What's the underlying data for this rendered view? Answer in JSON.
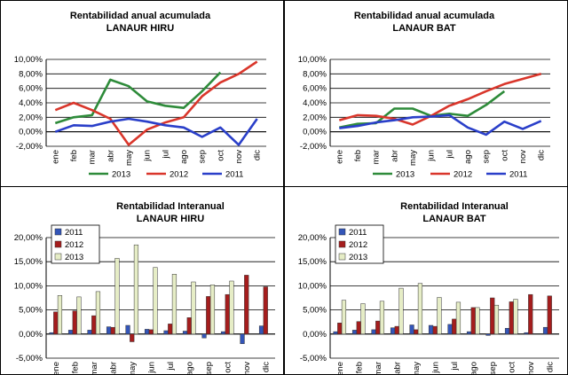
{
  "chart_data": [
    {
      "type": "line",
      "title": "Rentabilidad anual acumulada",
      "subtitle": "LANAUR HIRU",
      "categories": [
        "ene",
        "feb",
        "mar",
        "abr",
        "may",
        "jun",
        "jul",
        "ago",
        "sep",
        "oct",
        "nov",
        "dic"
      ],
      "ylim": [
        -2,
        10
      ],
      "yticks": [
        "-2,00%",
        "0,00%",
        "2,00%",
        "4,00%",
        "6,00%",
        "8,00%",
        "10,00%"
      ],
      "ytick_values": [
        -2,
        0,
        2,
        4,
        6,
        8,
        10
      ],
      "grid": true,
      "legend": "bottom",
      "series": [
        {
          "name": "2013",
          "color": "#2e8b3a",
          "values": [
            1.2,
            2.0,
            2.3,
            7.2,
            6.3,
            4.2,
            3.6,
            3.3,
            5.6,
            8.2,
            null,
            null
          ]
        },
        {
          "name": "2012",
          "color": "#d9362b",
          "values": [
            3.0,
            4.0,
            3.0,
            1.8,
            -1.8,
            0.3,
            1.3,
            2.0,
            4.9,
            6.8,
            8.0,
            9.7
          ]
        },
        {
          "name": "2011",
          "color": "#2a3fc9",
          "values": [
            0.0,
            0.9,
            0.8,
            1.4,
            1.8,
            1.4,
            0.9,
            0.6,
            -0.7,
            0.6,
            -1.8,
            1.8
          ]
        }
      ]
    },
    {
      "type": "line",
      "title": "Rentabilidad anual acumulada",
      "subtitle": "LANAUR BAT",
      "categories": [
        "ene",
        "feb",
        "mar",
        "abr",
        "may",
        "jun",
        "jul",
        "ago",
        "sep",
        "oct",
        "nov",
        "dic"
      ],
      "ylim": [
        -2,
        10
      ],
      "yticks": [
        "-2,00%",
        "0,00%",
        "2,00%",
        "4,00%",
        "6,00%",
        "8,00%",
        "10,00%"
      ],
      "ytick_values": [
        -2,
        0,
        2,
        4,
        6,
        8,
        10
      ],
      "grid": true,
      "legend": "bottom",
      "series": [
        {
          "name": "2013",
          "color": "#2e8b3a",
          "values": [
            0.6,
            1.1,
            1.2,
            3.2,
            3.2,
            2.2,
            2.5,
            2.2,
            3.7,
            5.6,
            null,
            null
          ]
        },
        {
          "name": "2012",
          "color": "#d9362b",
          "values": [
            1.6,
            2.3,
            2.2,
            1.8,
            1.0,
            2.2,
            3.6,
            4.5,
            5.6,
            6.6,
            7.3,
            8.0
          ]
        },
        {
          "name": "2011",
          "color": "#2a3fc9",
          "values": [
            0.5,
            0.8,
            1.3,
            1.6,
            2.0,
            2.1,
            2.3,
            0.6,
            -0.4,
            1.4,
            0.4,
            1.5
          ]
        }
      ]
    },
    {
      "type": "bar",
      "title": "Rentabilidad Interanual",
      "subtitle": "LANAUR HIRU",
      "categories": [
        "ene",
        "feb",
        "mar",
        "abr",
        "may",
        "jun",
        "jul",
        "ago",
        "sep",
        "oct",
        "nov",
        "dic"
      ],
      "ylim": [
        -5,
        20
      ],
      "yticks": [
        "-5,00%",
        "0,00%",
        "5,00%",
        "10,00%",
        "15,00%",
        "20,00%"
      ],
      "ytick_values": [
        -5,
        0,
        5,
        10,
        15,
        20
      ],
      "grid": true,
      "legend": "top-left",
      "series": [
        {
          "name": "2011",
          "color": "#3355b8",
          "values": [
            0.3,
            0.8,
            0.8,
            1.5,
            1.8,
            1.0,
            0.7,
            0.6,
            -0.8,
            0.5,
            -2.0,
            1.7
          ]
        },
        {
          "name": "2012",
          "color": "#a51d1d",
          "values": [
            4.6,
            4.8,
            3.8,
            1.4,
            -1.6,
            0.9,
            2.1,
            3.4,
            7.8,
            8.2,
            12.2,
            9.8
          ]
        },
        {
          "name": "2013",
          "color": "#e6edc6",
          "values": [
            8.0,
            7.7,
            8.8,
            15.7,
            18.5,
            13.8,
            12.4,
            10.8,
            10.2,
            11.0,
            null,
            null
          ]
        }
      ]
    },
    {
      "type": "bar",
      "title": "Rentabilidad Interanual",
      "subtitle": "LANAUR BAT",
      "categories": [
        "ene",
        "feb",
        "mar",
        "abr",
        "may",
        "jun",
        "jul",
        "ago",
        "sep",
        "oct",
        "nov",
        "dic"
      ],
      "ylim": [
        -5,
        20
      ],
      "yticks": [
        "-5,00%",
        "0,00%",
        "5,00%",
        "10,00%",
        "15,00%",
        "20,00%"
      ],
      "ytick_values": [
        -5,
        0,
        5,
        10,
        15,
        20
      ],
      "grid": true,
      "legend": "top-left",
      "series": [
        {
          "name": "2011",
          "color": "#3355b8",
          "values": [
            0.5,
            0.8,
            0.9,
            1.3,
            1.9,
            1.8,
            2.0,
            0.5,
            -0.3,
            1.2,
            0.3,
            1.4
          ]
        },
        {
          "name": "2012",
          "color": "#a51d1d",
          "values": [
            2.3,
            2.6,
            2.7,
            1.6,
            0.9,
            1.6,
            3.1,
            5.5,
            7.5,
            6.7,
            8.2,
            7.9
          ]
        },
        {
          "name": "2013",
          "color": "#e6edc6",
          "values": [
            7.0,
            6.3,
            6.8,
            9.5,
            10.5,
            7.6,
            6.6,
            5.5,
            6.0,
            7.2,
            null,
            null
          ]
        }
      ]
    }
  ]
}
